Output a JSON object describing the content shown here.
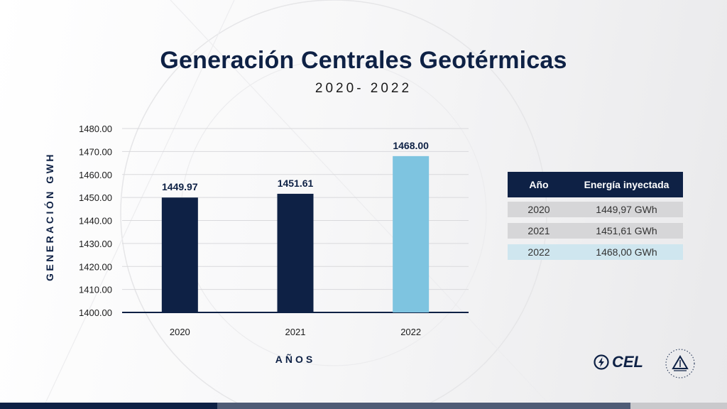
{
  "title": "Generación Centrales Geotérmicas",
  "subtitle": "2020- 2022",
  "chart_data": {
    "type": "bar",
    "categories": [
      "2020",
      "2021",
      "2022"
    ],
    "values": [
      1449.97,
      1451.61,
      1468.0
    ],
    "value_labels": [
      "1449.97",
      "1451.61",
      "1468.00"
    ],
    "ylabel": "GENERACIÓN GWH",
    "xlabel": "AÑOS",
    "ylim": [
      1400,
      1480
    ],
    "yticks": [
      "1400.00",
      "1410.00",
      "1420.00",
      "1430.00",
      "1440.00",
      "1450.00",
      "1460.00",
      "1470.00",
      "1480.00"
    ],
    "bar_colors": [
      "#0e2145",
      "#0e2145",
      "#7ec4e0"
    ],
    "grid": true
  },
  "table": {
    "headers": [
      "Año",
      "Energía inyectada"
    ],
    "rows": [
      {
        "year": "2020",
        "energy": "1449,97 GWh"
      },
      {
        "year": "2021",
        "energy": "1451,61 GWh"
      },
      {
        "year": "2022",
        "energy": "1468,00 GWh"
      }
    ]
  },
  "logo": {
    "text": "CEL",
    "icon": "lightning-bolt-icon"
  },
  "seal": {
    "icon": "el-salvador-coat-of-arms-icon"
  },
  "colors": {
    "navy": "#0e2145",
    "light_blue": "#7ec4e0",
    "row_grey": "#d6d6d8",
    "row_blue": "#cfe6ef"
  }
}
